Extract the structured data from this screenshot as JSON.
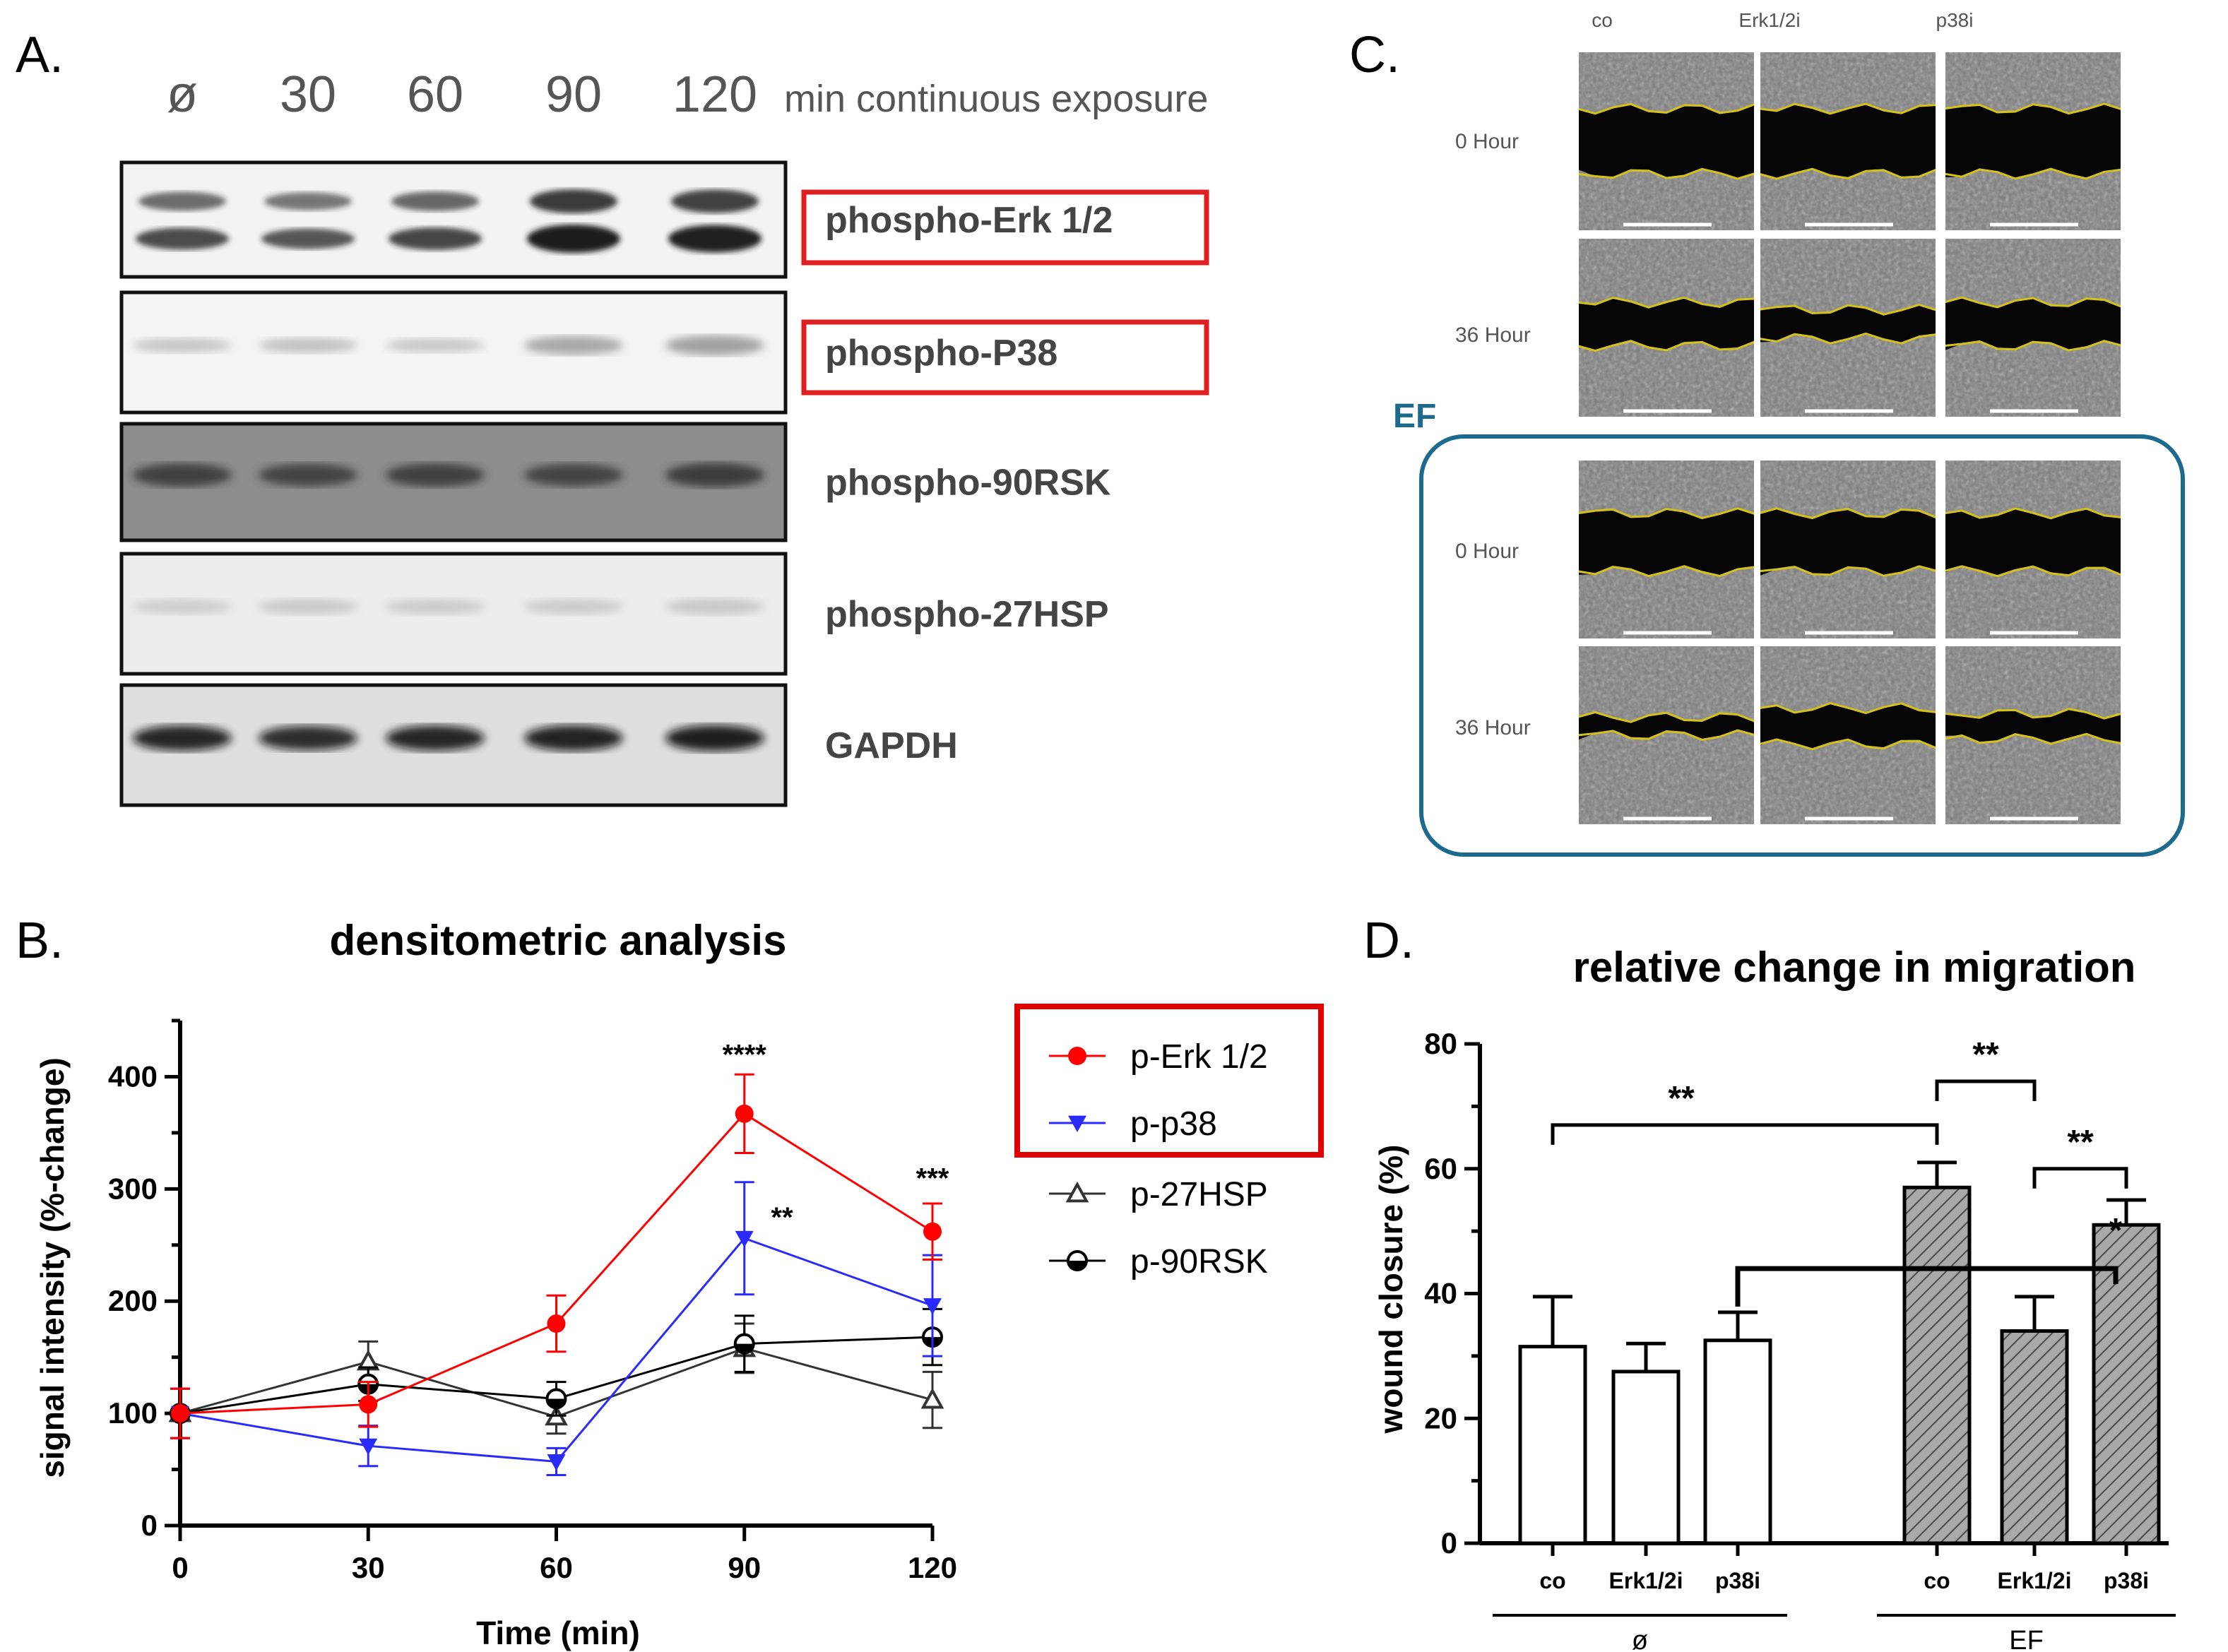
{
  "panels": {
    "a": {
      "label": "A.",
      "lanes": [
        "ø",
        "30",
        "60",
        "90",
        "120"
      ],
      "lanes_unit": "min continuous exposure",
      "blots": [
        {
          "name": "phospho-Erk 1/2",
          "boxed": true,
          "box_color": "#e02020"
        },
        {
          "name": "phospho-P38",
          "boxed": true,
          "box_color": "#e02020"
        },
        {
          "name": "phospho-90RSK",
          "boxed": false
        },
        {
          "name": "phospho-27HSP",
          "boxed": false
        },
        {
          "name": "GAPDH",
          "boxed": false
        }
      ]
    },
    "c": {
      "label": "C.",
      "conditions": [
        "co",
        "Erk1/2i",
        "p38i"
      ],
      "rows": [
        "0 Hour",
        "36 Hour",
        "0 Hour",
        "36 Hour"
      ],
      "group_label": "EF",
      "group_color": "#1c6a8e",
      "wound_edge_color": "#d4c21a"
    },
    "b": {
      "label": "B."
    },
    "d": {
      "label": "D."
    }
  },
  "chart_data": [
    {
      "type": "line",
      "title": "densitometric analysis",
      "xlabel": "Time (min)",
      "ylabel": "signal intensity (%-change)",
      "x": [
        0,
        30,
        60,
        90,
        120
      ],
      "xticks": [
        "0",
        "30",
        "60",
        "90",
        "120"
      ],
      "yticks": [
        "0",
        "100",
        "200",
        "300",
        "400"
      ],
      "xlim": [
        0,
        120
      ],
      "ylim": [
        0,
        450
      ],
      "legend_position": "right",
      "legend_box": true,
      "series": [
        {
          "name": "p-Erk 1/2",
          "color": "#ff0000",
          "marker": "circle-filled",
          "values": [
            100,
            108,
            180,
            367,
            262
          ],
          "errors": [
            22,
            20,
            25,
            35,
            25
          ]
        },
        {
          "name": "p-p38",
          "color": "#2a2aff",
          "marker": "triangle-down-filled",
          "values": [
            100,
            71,
            57,
            256,
            196
          ],
          "errors": [
            22,
            18,
            12,
            50,
            45
          ]
        },
        {
          "name": "p-27HSP",
          "color": "#333333",
          "marker": "triangle-up-open",
          "values": [
            100,
            146,
            97,
            158,
            112
          ],
          "errors": [
            22,
            18,
            15,
            22,
            25
          ]
        },
        {
          "name": "p-90RSK",
          "color": "#000000",
          "marker": "circle-half",
          "values": [
            100,
            126,
            113,
            162,
            168
          ],
          "errors": [
            22,
            15,
            15,
            25,
            25
          ]
        }
      ],
      "annotations": [
        {
          "text": "****",
          "x": 90,
          "y": 420
        },
        {
          "text": "**",
          "x": 96,
          "y": 275
        },
        {
          "text": "***",
          "x": 120,
          "y": 310
        }
      ]
    },
    {
      "type": "bar",
      "title": "relative change in migration",
      "xlabel": "",
      "ylabel": "wound closure (%)",
      "categories": [
        "co",
        "Erk1/2i",
        "p38i",
        "co",
        "Erk1/2i",
        "p38i"
      ],
      "groups": [
        {
          "label": "ø",
          "indices": [
            0,
            1,
            2
          ],
          "fill": "white"
        },
        {
          "label": "EF",
          "indices": [
            3,
            4,
            5
          ],
          "fill": "hatched-gray"
        }
      ],
      "values": [
        31.5,
        27.5,
        32.5,
        57,
        34,
        51
      ],
      "errors": [
        8,
        4.5,
        4.5,
        4,
        5.5,
        4
      ],
      "yticks": [
        "0",
        "20",
        "40",
        "60",
        "80"
      ],
      "ylim": [
        0,
        80
      ],
      "significance": [
        {
          "from": 0,
          "to": 3,
          "text": "**",
          "level": 67
        },
        {
          "from": 3,
          "to": 4,
          "text": "**",
          "level": 74
        },
        {
          "from": 4,
          "to": 5,
          "text": "**",
          "level": 60
        },
        {
          "from": 2,
          "to": 5,
          "text": "*",
          "level": 44
        }
      ]
    }
  ]
}
